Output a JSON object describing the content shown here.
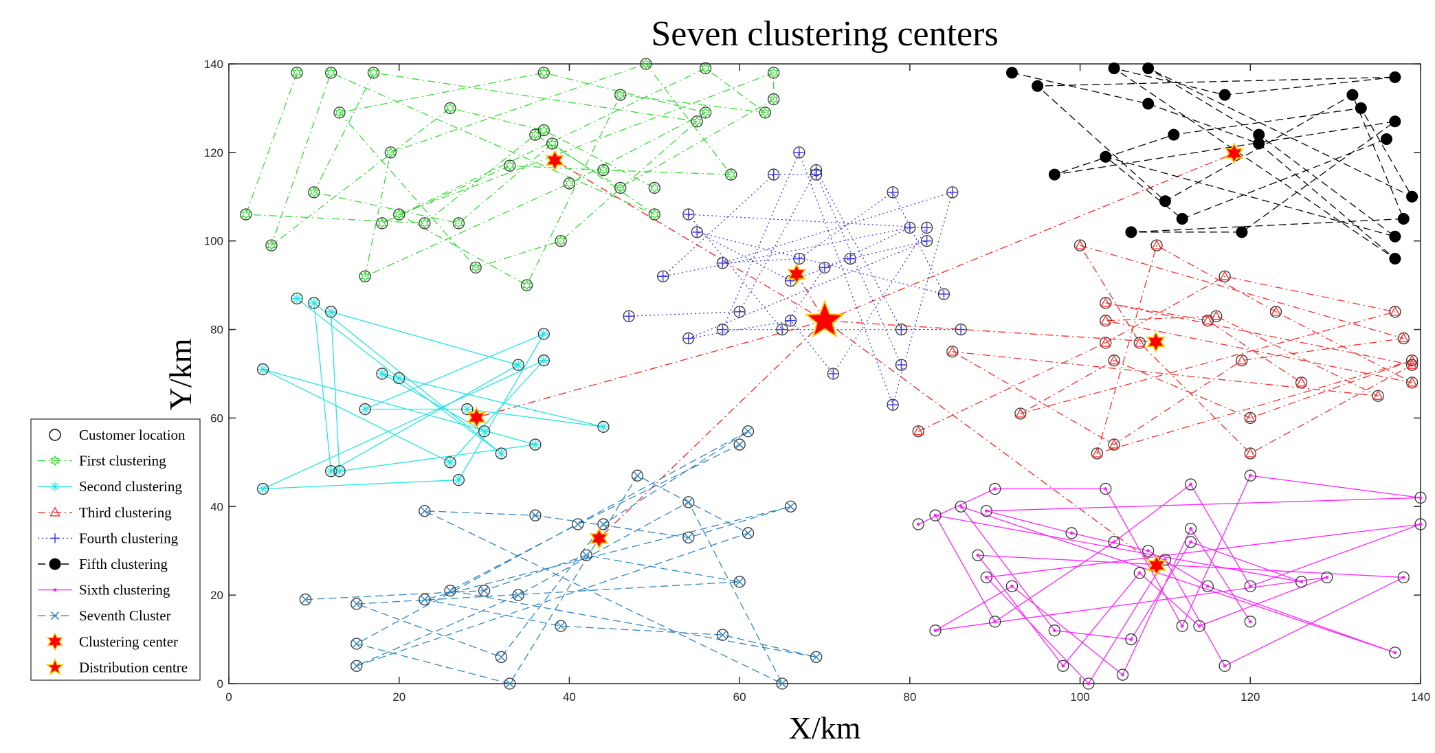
{
  "chart_data": {
    "type": "scatter",
    "title": "Seven clustering centers",
    "xlabel": "X/km",
    "ylabel": "Y/km",
    "xlim": [
      0,
      140
    ],
    "ylim": [
      0,
      140
    ],
    "xticks": [
      0,
      20,
      40,
      60,
      80,
      100,
      120,
      140
    ],
    "yticks": [
      0,
      20,
      40,
      60,
      80,
      100,
      120,
      140
    ],
    "legend_position": "bottom-left-outside",
    "legend": [
      "Customer location",
      "First clustering",
      "Second clustering",
      "Third clustering",
      "Fourth clustering",
      "Fifth clustering",
      "Sixth clustering",
      "Seventh Cluster",
      "Clustering center",
      "Distribution centre"
    ],
    "distribution_centre": [
      70,
      82
    ],
    "colors": {
      "customer": "#000000",
      "first": "#33dd33",
      "second": "#22e5e5",
      "third": "#ff2a2a",
      "fourth": "#3a3af0",
      "fifth": "#000000",
      "sixth": "#ff22ff",
      "seventh": "#2e86c1",
      "center_fill": "#ff0000",
      "center_edge": "#ffcc00",
      "links": "#ff2a2a"
    },
    "series": [
      {
        "name": "First clustering",
        "marker": "star",
        "style": "dashdot",
        "center": [
          38.3,
          118.2
        ],
        "points": [
          [
            8,
            138
          ],
          [
            12,
            138
          ],
          [
            17,
            138
          ],
          [
            37,
            138
          ],
          [
            49,
            140
          ],
          [
            56,
            139
          ],
          [
            64,
            138
          ],
          [
            2,
            106
          ],
          [
            5,
            99
          ],
          [
            10,
            111
          ],
          [
            13,
            129
          ],
          [
            19,
            120
          ],
          [
            18,
            104
          ],
          [
            20,
            106
          ],
          [
            23,
            104
          ],
          [
            26,
            130
          ],
          [
            27,
            104
          ],
          [
            29,
            94
          ],
          [
            16,
            92
          ],
          [
            33,
            117
          ],
          [
            35,
            90
          ],
          [
            36,
            124
          ],
          [
            37,
            125
          ],
          [
            38,
            122
          ],
          [
            39,
            100
          ],
          [
            40,
            113
          ],
          [
            44,
            116
          ],
          [
            46,
            133
          ],
          [
            46,
            112
          ],
          [
            50,
            112
          ],
          [
            50,
            106
          ],
          [
            55,
            127
          ],
          [
            56,
            129
          ],
          [
            59,
            115
          ],
          [
            63,
            129
          ],
          [
            64,
            132
          ]
        ]
      },
      {
        "name": "Second clustering",
        "marker": "asterisk",
        "style": "solid",
        "center": [
          29.1,
          60.1
        ],
        "points": [
          [
            8,
            87
          ],
          [
            10,
            86
          ],
          [
            12,
            84
          ],
          [
            4,
            71
          ],
          [
            4,
            44
          ],
          [
            16,
            62
          ],
          [
            18,
            70
          ],
          [
            20,
            69
          ],
          [
            12,
            48
          ],
          [
            13,
            48
          ],
          [
            26,
            50
          ],
          [
            27,
            46
          ],
          [
            28,
            62
          ],
          [
            30,
            57
          ],
          [
            32,
            52
          ],
          [
            34,
            72
          ],
          [
            36,
            54
          ],
          [
            37,
            73
          ],
          [
            37,
            79
          ],
          [
            44,
            58
          ]
        ]
      },
      {
        "name": "Third clustering",
        "marker": "triangle",
        "style": "dashdot",
        "center": [
          108.9,
          77.2
        ],
        "points": [
          [
            81,
            57
          ],
          [
            85,
            75
          ],
          [
            93,
            61
          ],
          [
            100,
            99
          ],
          [
            102,
            52
          ],
          [
            103,
            86
          ],
          [
            103,
            82
          ],
          [
            103,
            77
          ],
          [
            104,
            54
          ],
          [
            104,
            73
          ],
          [
            107,
            77
          ],
          [
            109,
            99
          ],
          [
            115,
            82
          ],
          [
            116,
            83
          ],
          [
            117,
            92
          ],
          [
            119,
            73
          ],
          [
            120,
            60
          ],
          [
            120,
            52
          ],
          [
            123,
            84
          ],
          [
            126,
            68
          ],
          [
            135,
            65
          ],
          [
            137,
            84
          ],
          [
            138,
            78
          ],
          [
            139,
            73
          ],
          [
            139,
            72
          ],
          [
            139,
            68
          ]
        ]
      },
      {
        "name": "Fourth clustering",
        "marker": "plus",
        "style": "dotted",
        "center": [
          66.7,
          92.5
        ],
        "points": [
          [
            47,
            83
          ],
          [
            51,
            92
          ],
          [
            54,
            106
          ],
          [
            54,
            78
          ],
          [
            55,
            102
          ],
          [
            58,
            95
          ],
          [
            58,
            80
          ],
          [
            60,
            84
          ],
          [
            64,
            115
          ],
          [
            65,
            80
          ],
          [
            66,
            82
          ],
          [
            66,
            91
          ],
          [
            67,
            96
          ],
          [
            67,
            120
          ],
          [
            69,
            116
          ],
          [
            69,
            115
          ],
          [
            70,
            94
          ],
          [
            71,
            70
          ],
          [
            73,
            96
          ],
          [
            78,
            111
          ],
          [
            78,
            63
          ],
          [
            79,
            80
          ],
          [
            79,
            72
          ],
          [
            80,
            103
          ],
          [
            82,
            103
          ],
          [
            82,
            100
          ],
          [
            84,
            88
          ],
          [
            85,
            111
          ],
          [
            86,
            80
          ]
        ]
      },
      {
        "name": "Fifth clustering",
        "marker": "dot",
        "style": "dashed",
        "center": [
          118.1,
          119.8
        ],
        "points": [
          [
            92,
            138
          ],
          [
            95,
            135
          ],
          [
            97,
            115
          ],
          [
            103,
            119
          ],
          [
            104,
            139
          ],
          [
            106,
            102
          ],
          [
            108,
            139
          ],
          [
            108,
            131
          ],
          [
            110,
            109
          ],
          [
            111,
            124
          ],
          [
            112,
            105
          ],
          [
            117,
            133
          ],
          [
            119,
            102
          ],
          [
            121,
            124
          ],
          [
            121,
            122
          ],
          [
            132,
            133
          ],
          [
            133,
            130
          ],
          [
            136,
            123
          ],
          [
            137,
            137
          ],
          [
            137,
            127
          ],
          [
            137,
            101
          ],
          [
            137,
            96
          ],
          [
            138,
            105
          ],
          [
            139,
            110
          ]
        ]
      },
      {
        "name": "Sixth clustering",
        "marker": "point",
        "style": "solid",
        "center": [
          109.0,
          26.7
        ],
        "points": [
          [
            81,
            36
          ],
          [
            83,
            38
          ],
          [
            83,
            12
          ],
          [
            86,
            40
          ],
          [
            88,
            29
          ],
          [
            89,
            39
          ],
          [
            89,
            24
          ],
          [
            90,
            44
          ],
          [
            90,
            14
          ],
          [
            92,
            22
          ],
          [
            97,
            12
          ],
          [
            98,
            4
          ],
          [
            99,
            34
          ],
          [
            101,
            0
          ],
          [
            103,
            44
          ],
          [
            104,
            32
          ],
          [
            105,
            2
          ],
          [
            106,
            10
          ],
          [
            107,
            25
          ],
          [
            108,
            30
          ],
          [
            110,
            28
          ],
          [
            112,
            13
          ],
          [
            113,
            45
          ],
          [
            113,
            35
          ],
          [
            113,
            32
          ],
          [
            114,
            13
          ],
          [
            115,
            22
          ],
          [
            117,
            4
          ],
          [
            120,
            47
          ],
          [
            120,
            22
          ],
          [
            120,
            14
          ],
          [
            126,
            23
          ],
          [
            129,
            24
          ],
          [
            137,
            7
          ],
          [
            138,
            24
          ],
          [
            140,
            42
          ],
          [
            140,
            36
          ]
        ]
      },
      {
        "name": "Seventh Cluster",
        "marker": "x",
        "style": "dashed",
        "center": [
          43.5,
          32.8
        ],
        "points": [
          [
            9,
            19
          ],
          [
            15,
            18
          ],
          [
            15,
            9
          ],
          [
            15,
            4
          ],
          [
            23,
            39
          ],
          [
            23,
            19
          ],
          [
            26,
            21
          ],
          [
            30,
            21
          ],
          [
            32,
            6
          ],
          [
            33,
            0
          ],
          [
            34,
            20
          ],
          [
            36,
            38
          ],
          [
            39,
            13
          ],
          [
            41,
            36
          ],
          [
            42,
            29
          ],
          [
            44,
            36
          ],
          [
            48,
            47
          ],
          [
            54,
            41
          ],
          [
            54,
            33
          ],
          [
            58,
            11
          ],
          [
            60,
            54
          ],
          [
            60,
            23
          ],
          [
            61,
            57
          ],
          [
            61,
            34
          ],
          [
            65,
            0
          ],
          [
            66,
            40
          ],
          [
            69,
            6
          ]
        ]
      }
    ]
  }
}
